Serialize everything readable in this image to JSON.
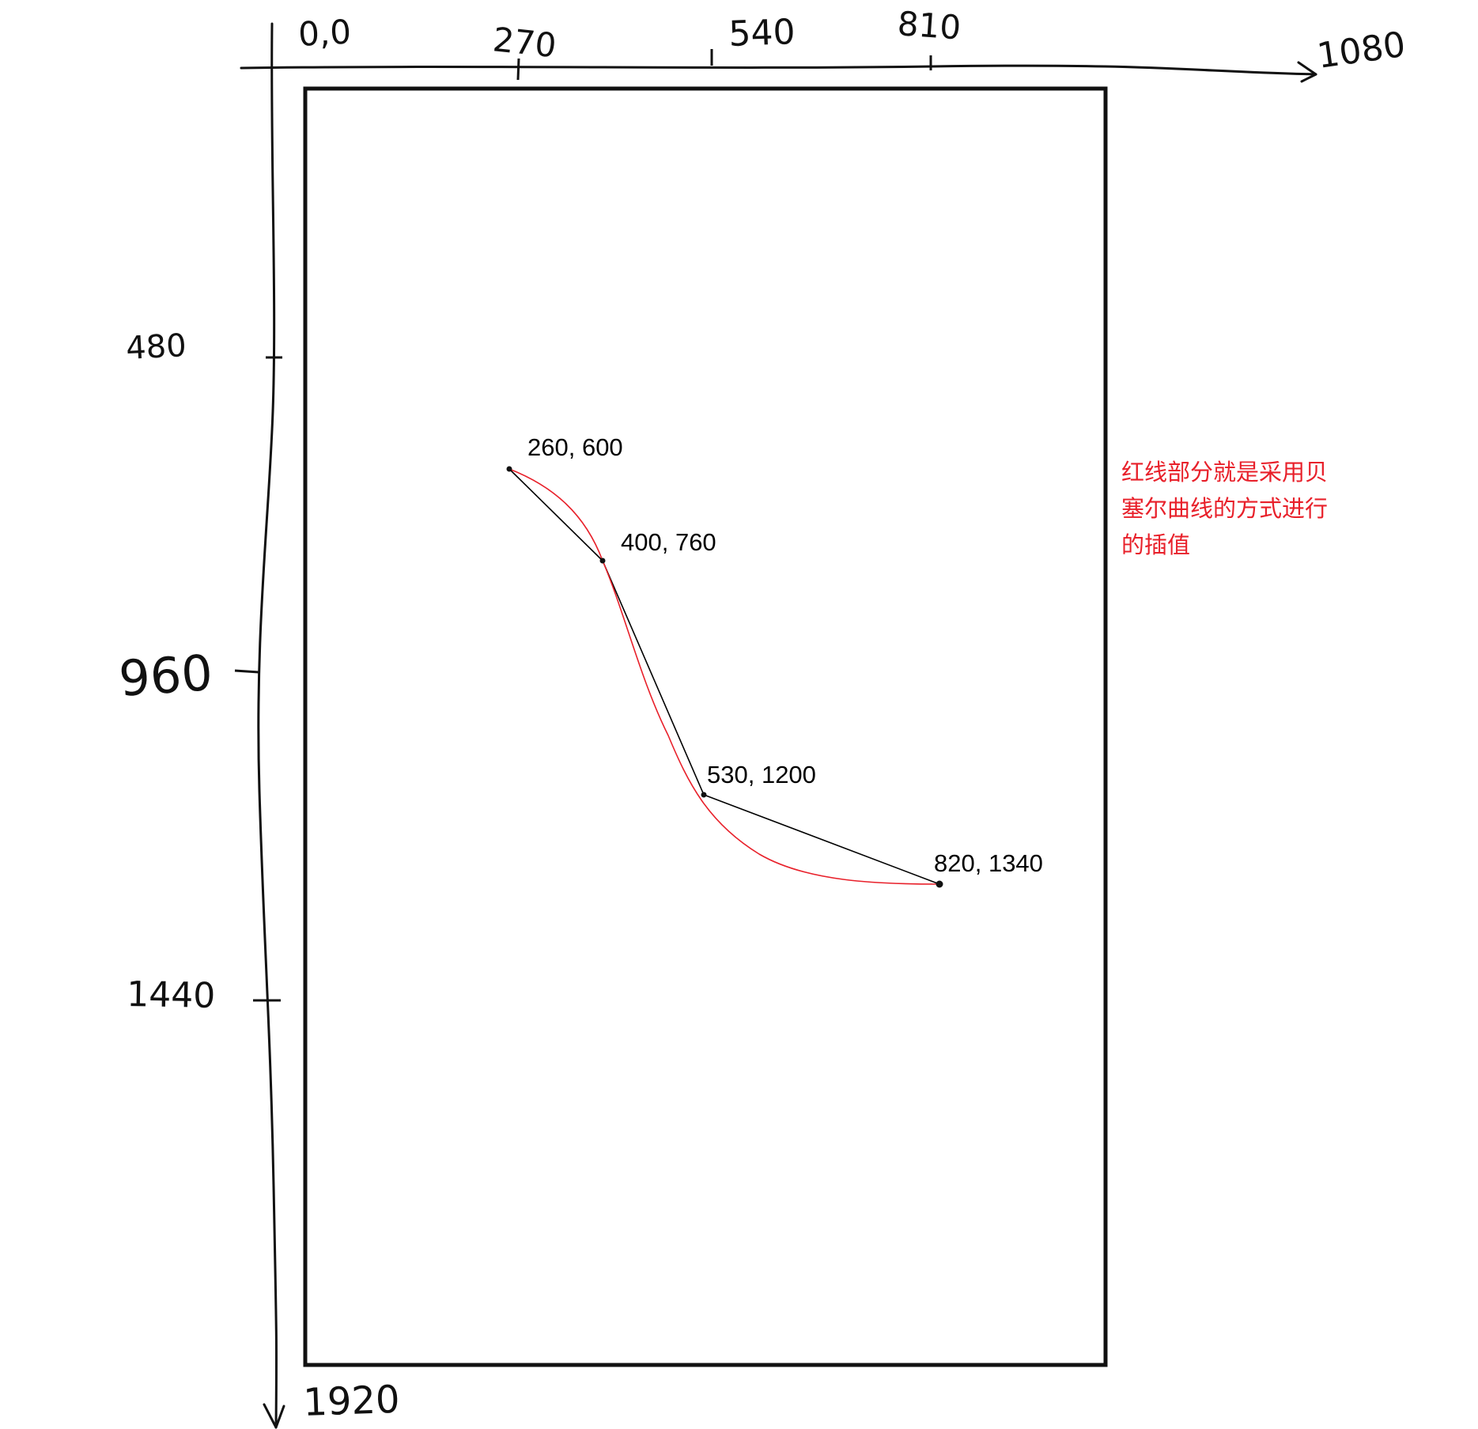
{
  "axes": {
    "origin_label": "0,0",
    "x_ticks": [
      "270",
      "540",
      "810"
    ],
    "x_end_label": "1080",
    "y_ticks": [
      "480",
      "960",
      "1440"
    ],
    "y_end_label": "1920"
  },
  "diagram": {
    "points": [
      {
        "label": "260, 600"
      },
      {
        "label": "400, 760"
      },
      {
        "label": "530, 1200"
      },
      {
        "label": "820, 1340"
      }
    ],
    "control_polyline_color": "#000000",
    "curve_color": "#e8202a"
  },
  "annotation": {
    "lines": [
      "红线部分就是采用贝",
      "塞尔曲线的方式进行",
      "的插值"
    ],
    "color": "#e8202a"
  }
}
